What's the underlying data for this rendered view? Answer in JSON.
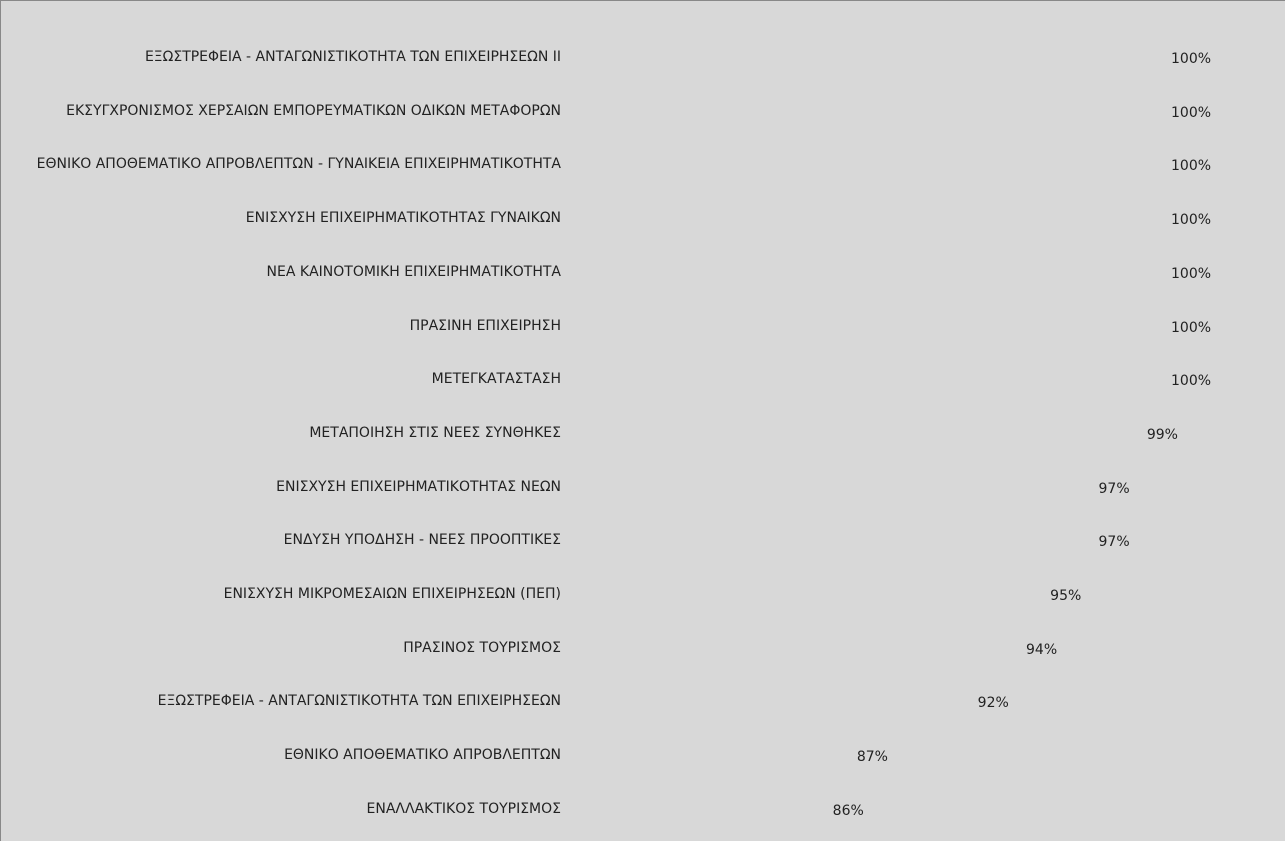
{
  "chart_data": {
    "type": "barh",
    "categories": [
      "ΕΞΩΣΤΡΕΦΕΙΑ - ΑΝΤΑΓΩΝΙΣΤΙΚΟΤΗΤΑ ΤΩΝ ΕΠΙΧΕΙΡΗΣΕΩΝ ΙΙ",
      "ΕΚΣΥΓΧΡΟΝΙΣΜΟΣ ΧΕΡΣΑΙΩΝ ΕΜΠΟΡΕΥΜΑΤΙΚΩΝ ΟΔΙΚΩΝ ΜΕΤΑΦΟΡΩΝ",
      "ΕΘΝΙΚΟ ΑΠΟΘΕΜΑΤΙΚΟ ΑΠΡΟΒΛΕΠΤΩΝ - ΓΥΝΑΙΚΕΙΑ ΕΠΙΧΕΙΡΗΜΑΤΙΚΟΤΗΤΑ",
      "ΕΝΙΣΧΥΣΗ ΕΠΙΧΕΙΡΗΜΑΤΙΚΟΤΗΤΑΣ ΓΥΝΑΙΚΩΝ",
      "ΝΕΑ ΚΑΙΝΟΤΟΜΙΚΗ ΕΠΙΧΕΙΡΗΜΑΤΙΚΟΤΗΤΑ",
      "ΠΡΑΣΙΝΗ ΕΠΙΧΕΙΡΗΣΗ",
      "ΜΕΤΕΓΚΑΤΑΣΤΑΣΗ",
      "ΜΕΤΑΠΟΙΗΣΗ ΣΤΙΣ ΝΕΕΣ ΣΥΝΘΗΚΕΣ",
      "ΕΝΙΣΧΥΣΗ ΕΠΙΧΕΙΡΗΜΑΤΙΚΟΤΗΤΑΣ ΝΕΩΝ",
      "ΕΝΔΥΣΗ ΥΠΟΔΗΣΗ - ΝΕΕΣ ΠΡΟΟΠΤΙΚΕΣ",
      "ΕΝΙΣΧΥΣΗ ΜΙΚΡΟΜΕΣΑΙΩΝ ΕΠΙΧΕΙΡΗΣΕΩΝ (ΠΕΠ)",
      "ΠΡΑΣΙΝΟΣ ΤΟΥΡΙΣΜΟΣ",
      "ΕΞΩΣΤΡΕΦΕΙΑ - ΑΝΤΑΓΩΝΙΣΤΙΚΟΤΗΤΑ ΤΩΝ ΕΠΙΧΕΙΡΗΣΕΩΝ",
      "ΕΘΝΙΚΟ ΑΠΟΘΕΜΑΤΙΚΟ ΑΠΡΟΒΛΕΠΤΩΝ",
      "ΕΝΑΛΛΑΚΤΙΚΟΣ ΤΟΥΡΙΣΜΟΣ"
    ],
    "values": [
      100,
      100,
      100,
      100,
      100,
      100,
      100,
      99,
      97,
      97,
      95,
      94,
      92,
      87,
      86
    ],
    "value_labels": [
      "100%",
      "100%",
      "100%",
      "100%",
      "100%",
      "100%",
      "100%",
      "99%",
      "97%",
      "97%",
      "95%",
      "94%",
      "92%",
      "87%",
      "86%"
    ],
    "color": "#4a7fc9",
    "xlim": [
      76,
      100
    ]
  }
}
